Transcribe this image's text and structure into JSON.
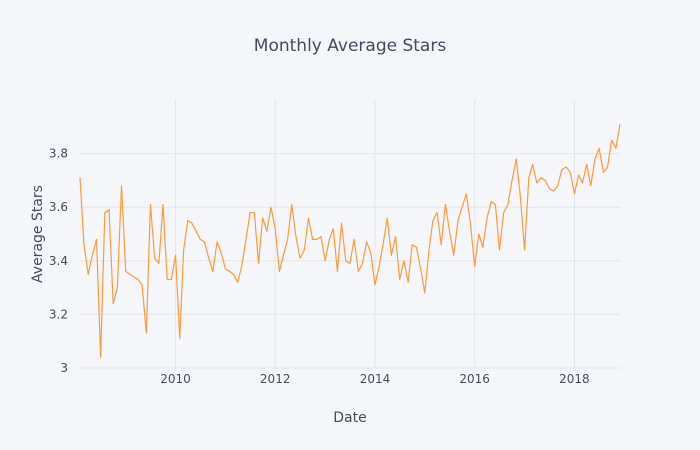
{
  "chart_data": {
    "type": "line",
    "title": "Monthly Average Stars",
    "xlabel": "Date",
    "ylabel": "Average Stars",
    "xlim": [
      "2008-02-01",
      "2018-12-01"
    ],
    "ylim": [
      3.0,
      4.0
    ],
    "x_ticks": [
      {
        "date": "2010-01-01",
        "label": "2010"
      },
      {
        "date": "2012-01-01",
        "label": "2012"
      },
      {
        "date": "2014-01-01",
        "label": "2014"
      },
      {
        "date": "2016-01-01",
        "label": "2016"
      },
      {
        "date": "2018-01-01",
        "label": "2018"
      }
    ],
    "y_ticks": [
      {
        "value": 3.0,
        "label": "3"
      },
      {
        "value": 3.2,
        "label": "3.2"
      },
      {
        "value": 3.4,
        "label": "3.4"
      },
      {
        "value": 3.6,
        "label": "3.6"
      },
      {
        "value": 3.8,
        "label": "3.8"
      }
    ],
    "grid": true,
    "legend": "none",
    "series": [
      {
        "color": "#ff9a3c",
        "x": [
          "2008-02",
          "2008-03",
          "2008-04",
          "2008-05",
          "2008-06",
          "2008-07",
          "2008-08",
          "2008-09",
          "2008-10",
          "2008-11",
          "2008-12",
          "2009-01",
          "2009-02",
          "2009-03",
          "2009-04",
          "2009-05",
          "2009-06",
          "2009-07",
          "2009-08",
          "2009-09",
          "2009-10",
          "2009-11",
          "2009-12",
          "2010-01",
          "2010-02",
          "2010-03",
          "2010-04",
          "2010-05",
          "2010-06",
          "2010-07",
          "2010-08",
          "2010-09",
          "2010-10",
          "2010-11",
          "2010-12",
          "2011-01",
          "2011-02",
          "2011-03",
          "2011-04",
          "2011-05",
          "2011-06",
          "2011-07",
          "2011-08",
          "2011-09",
          "2011-10",
          "2011-11",
          "2011-12",
          "2012-01",
          "2012-02",
          "2012-03",
          "2012-04",
          "2012-05",
          "2012-06",
          "2012-07",
          "2012-08",
          "2012-09",
          "2012-10",
          "2012-11",
          "2012-12",
          "2013-01",
          "2013-02",
          "2013-03",
          "2013-04",
          "2013-05",
          "2013-06",
          "2013-07",
          "2013-08",
          "2013-09",
          "2013-10",
          "2013-11",
          "2013-12",
          "2014-01",
          "2014-02",
          "2014-03",
          "2014-04",
          "2014-05",
          "2014-06",
          "2014-07",
          "2014-08",
          "2014-09",
          "2014-10",
          "2014-11",
          "2014-12",
          "2015-01",
          "2015-02",
          "2015-03",
          "2015-04",
          "2015-05",
          "2015-06",
          "2015-07",
          "2015-08",
          "2015-09",
          "2015-10",
          "2015-11",
          "2015-12",
          "2016-01",
          "2016-02",
          "2016-03",
          "2016-04",
          "2016-05",
          "2016-06",
          "2016-07",
          "2016-08",
          "2016-09",
          "2016-10",
          "2016-11",
          "2016-12",
          "2017-01",
          "2017-02",
          "2017-03",
          "2017-04",
          "2017-05",
          "2017-06",
          "2017-07",
          "2017-08",
          "2017-09",
          "2017-10",
          "2017-11",
          "2017-12",
          "2018-01",
          "2018-02",
          "2018-03",
          "2018-04",
          "2018-05",
          "2018-06",
          "2018-07",
          "2018-08",
          "2018-09",
          "2018-10",
          "2018-11",
          "2018-12"
        ],
        "y": [
          3.71,
          3.46,
          3.35,
          3.42,
          3.48,
          3.04,
          3.58,
          3.59,
          3.24,
          3.3,
          3.68,
          3.36,
          3.35,
          3.34,
          3.33,
          3.31,
          3.13,
          3.61,
          3.41,
          3.39,
          3.61,
          3.33,
          3.33,
          3.42,
          3.11,
          3.44,
          3.55,
          3.54,
          3.51,
          3.48,
          3.47,
          3.41,
          3.36,
          3.47,
          3.43,
          3.37,
          3.36,
          3.35,
          3.32,
          3.38,
          3.48,
          3.58,
          3.58,
          3.39,
          3.56,
          3.51,
          3.6,
          3.52,
          3.36,
          3.42,
          3.48,
          3.61,
          3.49,
          3.41,
          3.44,
          3.56,
          3.48,
          3.48,
          3.49,
          3.4,
          3.48,
          3.52,
          3.36,
          3.54,
          3.4,
          3.39,
          3.48,
          3.36,
          3.39,
          3.47,
          3.43,
          3.31,
          3.38,
          3.46,
          3.56,
          3.42,
          3.49,
          3.33,
          3.4,
          3.32,
          3.46,
          3.45,
          3.37,
          3.28,
          3.44,
          3.55,
          3.58,
          3.46,
          3.61,
          3.51,
          3.42,
          3.55,
          3.6,
          3.65,
          3.54,
          3.38,
          3.5,
          3.45,
          3.56,
          3.62,
          3.61,
          3.44,
          3.58,
          3.61,
          3.7,
          3.78,
          3.64,
          3.44,
          3.71,
          3.76,
          3.69,
          3.71,
          3.7,
          3.67,
          3.66,
          3.68,
          3.74,
          3.75,
          3.73,
          3.65,
          3.72,
          3.69,
          3.76,
          3.68,
          3.78,
          3.82,
          3.73,
          3.75,
          3.85,
          3.82,
          3.91
        ]
      }
    ]
  }
}
